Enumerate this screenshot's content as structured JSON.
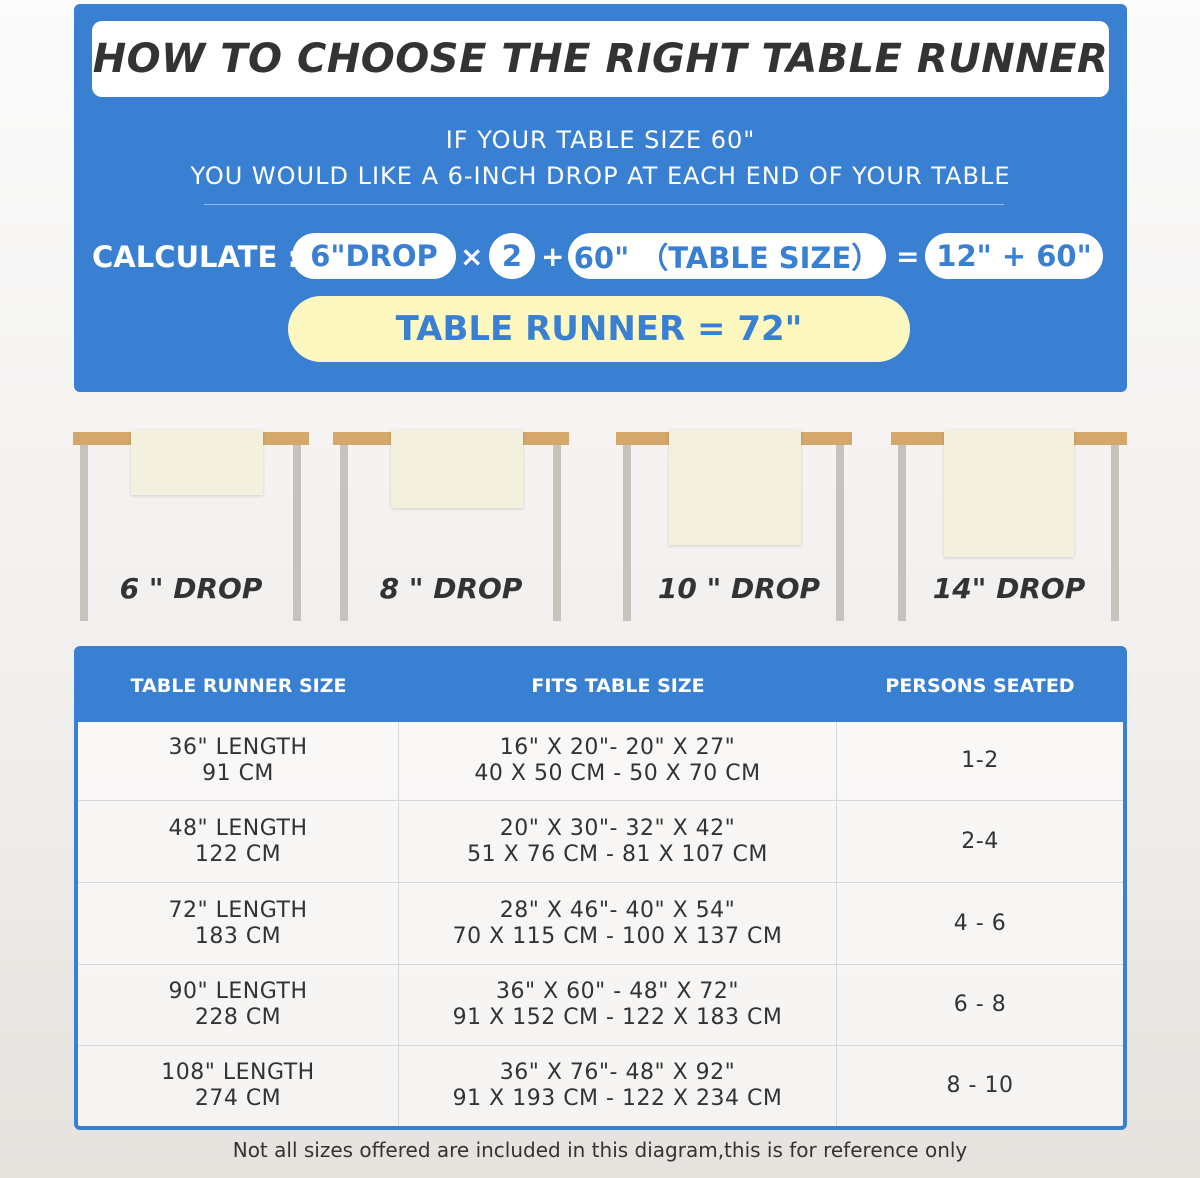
{
  "header": {
    "title": "HOW TO CHOOSE THE RIGHT TABLE RUNNER",
    "line1": "IF YOUR TABLE SIZE 60\"",
    "line2": "YOU WOULD LIKE A 6-INCH DROP AT EACH END OF YOUR TABLE"
  },
  "calc": {
    "label": "CALCULATE :",
    "drop": "6\"DROP",
    "times": "×",
    "two": "2",
    "plus": "+",
    "table": "60\" （TABLE SIZE）",
    "equals": "=",
    "sum": "12\" + 60\"",
    "result": "TABLE RUNNER = 72\""
  },
  "drops": [
    "6 \" DROP",
    "8 \" DROP",
    "10 \" DROP",
    "14\" DROP"
  ],
  "table": {
    "headers": [
      "TABLE RUNNER SIZE",
      "FITS TABLE SIZE",
      "PERSONS SEATED"
    ],
    "rows": [
      {
        "size": [
          "36\" LENGTH",
          "91 CM"
        ],
        "fits": [
          "16\" X 20\"- 20\" X 27\"",
          "40 X 50 CM - 50 X 70 CM"
        ],
        "persons": "1-2"
      },
      {
        "size": [
          "48\" LENGTH",
          "122 CM"
        ],
        "fits": [
          "20\" X 30\"- 32\" X 42\"",
          "51 X 76 CM - 81 X 107 CM"
        ],
        "persons": "2-4"
      },
      {
        "size": [
          "72\" LENGTH",
          "183 CM"
        ],
        "fits": [
          "28\" X 46\"- 40\" X 54\"",
          "70 X 115 CM - 100 X 137 CM"
        ],
        "persons": "4 - 6"
      },
      {
        "size": [
          "90\" LENGTH",
          "228 CM"
        ],
        "fits": [
          "36\" X 60\" - 48\" X 72\"",
          "91 X 152 CM - 122 X 183 CM"
        ],
        "persons": "6 - 8"
      },
      {
        "size": [
          "108\" LENGTH",
          "274 CM"
        ],
        "fits": [
          "36\" X 76\"- 48\" X 92\"",
          "91 X 193 CM - 122 X 234 CM"
        ],
        "persons": "8 - 10"
      }
    ]
  },
  "footnote": "Not all sizes offered are included in this diagram,this is for reference only",
  "colors": {
    "blue": "#3a80d2",
    "result_bg": "#fdf8c0",
    "wood": "#d3a86a"
  }
}
